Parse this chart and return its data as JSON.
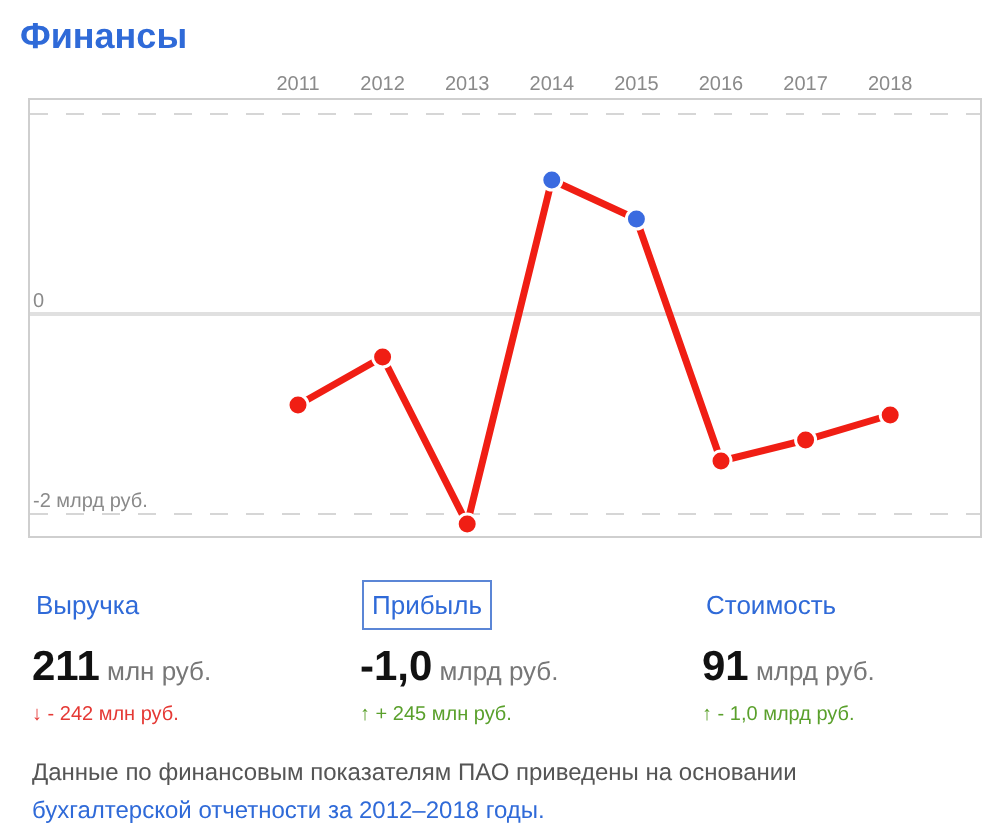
{
  "chart_data": {
    "type": "line",
    "title": "Финансы",
    "categories": [
      "2011",
      "2012",
      "2013",
      "2014",
      "2015",
      "2016",
      "2017",
      "2018"
    ],
    "series": [
      {
        "color": "#f01e14",
        "colors": [
          "#f01e14",
          "#f01e14",
          "#f01e14",
          "#3a6be0",
          "#3a6be0",
          "#f01e14",
          "#f01e14",
          "#f01e14"
        ],
        "values": [
          -0.91,
          -0.43,
          -2.1,
          1.34,
          0.95,
          -1.47,
          -1.26,
          -1.01
        ]
      }
    ],
    "ylim": [
      -2.22,
      2.14
    ],
    "yticks": [
      {
        "value": -2,
        "label": "-2 млрд руб."
      },
      0,
      {
        "value": 2,
        "label": null
      }
    ],
    "grid": "y",
    "marker": "circle",
    "annotations": [
      "Выручка",
      "211 млн руб.",
      "↓ - 242 млн руб.",
      "Прибыль",
      "-1,0 млрд руб.",
      "↑ + 245 млн руб.",
      "Стоимость",
      "91 млрд руб.",
      "↑ - 1,0 млрд руб.",
      "Данные по финансовым показателям ПАО приведены на основании",
      "бухгалтерской отчетности за 2012–2018 годы."
    ]
  }
}
